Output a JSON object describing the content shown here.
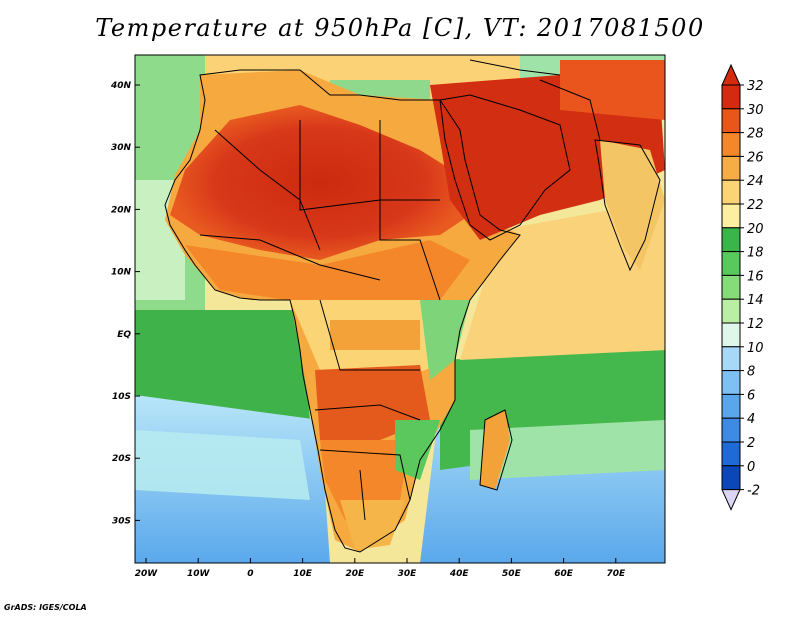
{
  "title": "Temperature at 950hPa [C], VT: 2017081500",
  "footer": "GrADS: IGES/COLA",
  "map": {
    "lon_labels": [
      "20W",
      "10W",
      "0",
      "10E",
      "20E",
      "30E",
      "40E",
      "50E",
      "60E",
      "70E"
    ],
    "lat_labels": [
      "40N",
      "30N",
      "20N",
      "10N",
      "EQ",
      "10S",
      "20S",
      "30S"
    ]
  },
  "colorbar": {
    "labels": [
      "32",
      "30",
      "28",
      "26",
      "24",
      "22",
      "20",
      "18",
      "16",
      "14",
      "12",
      "10",
      "8",
      "6",
      "4",
      "2",
      "0",
      "-2"
    ],
    "colors": [
      "#d42a10",
      "#e8561a",
      "#f3872a",
      "#f7ad45",
      "#fbd575",
      "#fcef9f",
      "#3ab54a",
      "#58c95c",
      "#86dc78",
      "#b9eea4",
      "#dff6ea",
      "#a8d8f8",
      "#7ec0f2",
      "#5aa6ec",
      "#3d8be4",
      "#1e6ad6",
      "#0b47b8",
      "#062c8e"
    ]
  }
}
